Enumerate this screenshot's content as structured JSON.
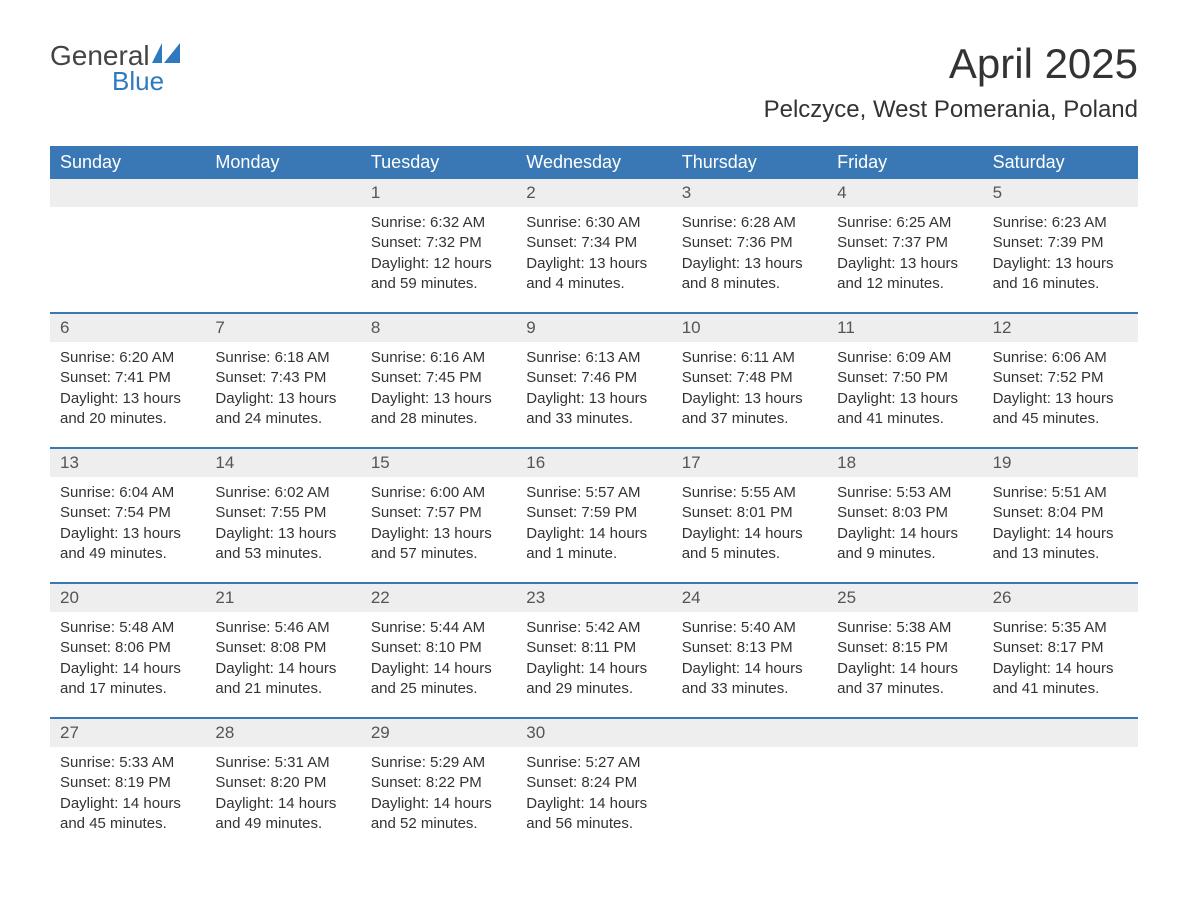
{
  "logo": {
    "general": "General",
    "blue": "Blue",
    "flag_color": "#2f7abf"
  },
  "title": "April 2025",
  "location": "Pelczyce, West Pomerania, Poland",
  "colors": {
    "header_bg": "#3a78b5",
    "header_text": "#ffffff",
    "day_number_bg": "#eeeeee",
    "week_border": "#3a78b5",
    "body_text": "#333333",
    "background": "#ffffff"
  },
  "weekdays": [
    "Sunday",
    "Monday",
    "Tuesday",
    "Wednesday",
    "Thursday",
    "Friday",
    "Saturday"
  ],
  "weeks": [
    [
      {
        "day": "",
        "sunrise": "",
        "sunset": "",
        "daylight": ""
      },
      {
        "day": "",
        "sunrise": "",
        "sunset": "",
        "daylight": ""
      },
      {
        "day": "1",
        "sunrise": "Sunrise: 6:32 AM",
        "sunset": "Sunset: 7:32 PM",
        "daylight": "Daylight: 12 hours and 59 minutes."
      },
      {
        "day": "2",
        "sunrise": "Sunrise: 6:30 AM",
        "sunset": "Sunset: 7:34 PM",
        "daylight": "Daylight: 13 hours and 4 minutes."
      },
      {
        "day": "3",
        "sunrise": "Sunrise: 6:28 AM",
        "sunset": "Sunset: 7:36 PM",
        "daylight": "Daylight: 13 hours and 8 minutes."
      },
      {
        "day": "4",
        "sunrise": "Sunrise: 6:25 AM",
        "sunset": "Sunset: 7:37 PM",
        "daylight": "Daylight: 13 hours and 12 minutes."
      },
      {
        "day": "5",
        "sunrise": "Sunrise: 6:23 AM",
        "sunset": "Sunset: 7:39 PM",
        "daylight": "Daylight: 13 hours and 16 minutes."
      }
    ],
    [
      {
        "day": "6",
        "sunrise": "Sunrise: 6:20 AM",
        "sunset": "Sunset: 7:41 PM",
        "daylight": "Daylight: 13 hours and 20 minutes."
      },
      {
        "day": "7",
        "sunrise": "Sunrise: 6:18 AM",
        "sunset": "Sunset: 7:43 PM",
        "daylight": "Daylight: 13 hours and 24 minutes."
      },
      {
        "day": "8",
        "sunrise": "Sunrise: 6:16 AM",
        "sunset": "Sunset: 7:45 PM",
        "daylight": "Daylight: 13 hours and 28 minutes."
      },
      {
        "day": "9",
        "sunrise": "Sunrise: 6:13 AM",
        "sunset": "Sunset: 7:46 PM",
        "daylight": "Daylight: 13 hours and 33 minutes."
      },
      {
        "day": "10",
        "sunrise": "Sunrise: 6:11 AM",
        "sunset": "Sunset: 7:48 PM",
        "daylight": "Daylight: 13 hours and 37 minutes."
      },
      {
        "day": "11",
        "sunrise": "Sunrise: 6:09 AM",
        "sunset": "Sunset: 7:50 PM",
        "daylight": "Daylight: 13 hours and 41 minutes."
      },
      {
        "day": "12",
        "sunrise": "Sunrise: 6:06 AM",
        "sunset": "Sunset: 7:52 PM",
        "daylight": "Daylight: 13 hours and 45 minutes."
      }
    ],
    [
      {
        "day": "13",
        "sunrise": "Sunrise: 6:04 AM",
        "sunset": "Sunset: 7:54 PM",
        "daylight": "Daylight: 13 hours and 49 minutes."
      },
      {
        "day": "14",
        "sunrise": "Sunrise: 6:02 AM",
        "sunset": "Sunset: 7:55 PM",
        "daylight": "Daylight: 13 hours and 53 minutes."
      },
      {
        "day": "15",
        "sunrise": "Sunrise: 6:00 AM",
        "sunset": "Sunset: 7:57 PM",
        "daylight": "Daylight: 13 hours and 57 minutes."
      },
      {
        "day": "16",
        "sunrise": "Sunrise: 5:57 AM",
        "sunset": "Sunset: 7:59 PM",
        "daylight": "Daylight: 14 hours and 1 minute."
      },
      {
        "day": "17",
        "sunrise": "Sunrise: 5:55 AM",
        "sunset": "Sunset: 8:01 PM",
        "daylight": "Daylight: 14 hours and 5 minutes."
      },
      {
        "day": "18",
        "sunrise": "Sunrise: 5:53 AM",
        "sunset": "Sunset: 8:03 PM",
        "daylight": "Daylight: 14 hours and 9 minutes."
      },
      {
        "day": "19",
        "sunrise": "Sunrise: 5:51 AM",
        "sunset": "Sunset: 8:04 PM",
        "daylight": "Daylight: 14 hours and 13 minutes."
      }
    ],
    [
      {
        "day": "20",
        "sunrise": "Sunrise: 5:48 AM",
        "sunset": "Sunset: 8:06 PM",
        "daylight": "Daylight: 14 hours and 17 minutes."
      },
      {
        "day": "21",
        "sunrise": "Sunrise: 5:46 AM",
        "sunset": "Sunset: 8:08 PM",
        "daylight": "Daylight: 14 hours and 21 minutes."
      },
      {
        "day": "22",
        "sunrise": "Sunrise: 5:44 AM",
        "sunset": "Sunset: 8:10 PM",
        "daylight": "Daylight: 14 hours and 25 minutes."
      },
      {
        "day": "23",
        "sunrise": "Sunrise: 5:42 AM",
        "sunset": "Sunset: 8:11 PM",
        "daylight": "Daylight: 14 hours and 29 minutes."
      },
      {
        "day": "24",
        "sunrise": "Sunrise: 5:40 AM",
        "sunset": "Sunset: 8:13 PM",
        "daylight": "Daylight: 14 hours and 33 minutes."
      },
      {
        "day": "25",
        "sunrise": "Sunrise: 5:38 AM",
        "sunset": "Sunset: 8:15 PM",
        "daylight": "Daylight: 14 hours and 37 minutes."
      },
      {
        "day": "26",
        "sunrise": "Sunrise: 5:35 AM",
        "sunset": "Sunset: 8:17 PM",
        "daylight": "Daylight: 14 hours and 41 minutes."
      }
    ],
    [
      {
        "day": "27",
        "sunrise": "Sunrise: 5:33 AM",
        "sunset": "Sunset: 8:19 PM",
        "daylight": "Daylight: 14 hours and 45 minutes."
      },
      {
        "day": "28",
        "sunrise": "Sunrise: 5:31 AM",
        "sunset": "Sunset: 8:20 PM",
        "daylight": "Daylight: 14 hours and 49 minutes."
      },
      {
        "day": "29",
        "sunrise": "Sunrise: 5:29 AM",
        "sunset": "Sunset: 8:22 PM",
        "daylight": "Daylight: 14 hours and 52 minutes."
      },
      {
        "day": "30",
        "sunrise": "Sunrise: 5:27 AM",
        "sunset": "Sunset: 8:24 PM",
        "daylight": "Daylight: 14 hours and 56 minutes."
      },
      {
        "day": "",
        "sunrise": "",
        "sunset": "",
        "daylight": ""
      },
      {
        "day": "",
        "sunrise": "",
        "sunset": "",
        "daylight": ""
      },
      {
        "day": "",
        "sunrise": "",
        "sunset": "",
        "daylight": ""
      }
    ]
  ]
}
